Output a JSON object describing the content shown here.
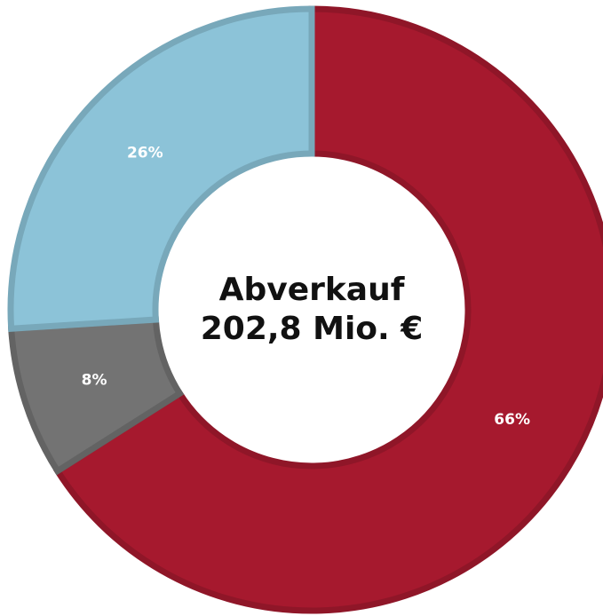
{
  "chart_data": {
    "type": "donut",
    "center_text": "Abverkauf 202,8 Mio. €",
    "values": [
      66,
      8,
      26
    ],
    "value_labels": [
      "66%",
      "8%",
      "26%"
    ],
    "colors": [
      "#a6192e",
      "#737373",
      "#8cc3d8"
    ]
  }
}
